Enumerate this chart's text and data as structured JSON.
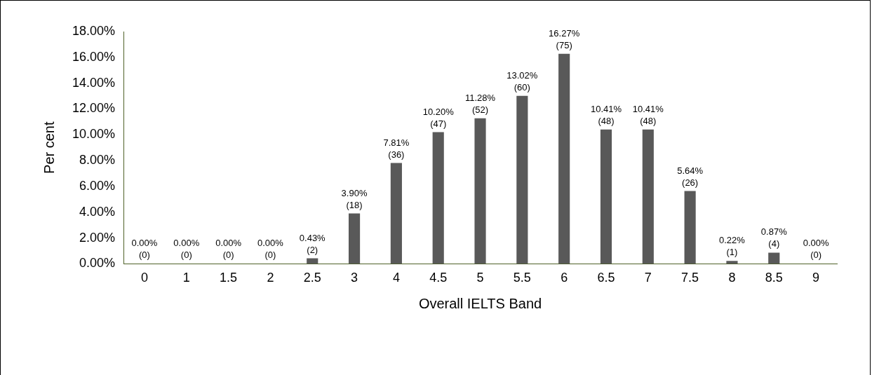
{
  "chart_data": {
    "type": "bar",
    "xlabel": "Overall IELTS Band",
    "ylabel": "Per cent",
    "categories": [
      "0",
      "1",
      "1.5",
      "2",
      "2.5",
      "3",
      "4",
      "4.5",
      "5",
      "5.5",
      "6",
      "6.5",
      "7",
      "7.5",
      "8",
      "8.5",
      "9"
    ],
    "values": [
      0,
      0,
      0,
      0,
      0.43,
      3.9,
      7.81,
      10.2,
      11.28,
      13.02,
      16.27,
      10.41,
      10.41,
      5.64,
      0.22,
      0.87,
      0
    ],
    "value_labels": [
      "0.00%\n(0)",
      "0.00%\n(0)",
      "0.00%\n(0)",
      "0.00%\n(0)",
      "0.43%\n(2)",
      "3.90%\n(18)",
      "7.81%\n(36)",
      "10.20%\n(47)",
      "11.28%\n(52)",
      "13.02%\n(60)",
      "16.27%\n(75)",
      "10.41%\n(48)",
      "10.41%\n(48)",
      "5.64%\n(26)",
      "0.22%\n(1)",
      "0.87%\n(4)",
      "0.00%\n(0)"
    ],
    "color": "#595959",
    "ylim": [
      0,
      18
    ],
    "yticks": [
      {
        "value": 0,
        "label": "0.00%"
      },
      {
        "value": 2,
        "label": "2.00%"
      },
      {
        "value": 4,
        "label": "4.00%"
      },
      {
        "value": 6,
        "label": "6.00%"
      },
      {
        "value": 8,
        "label": "8.00%"
      },
      {
        "value": 10,
        "label": "10.00%"
      },
      {
        "value": 12,
        "label": "12.00%"
      },
      {
        "value": 14,
        "label": "14.00%"
      },
      {
        "value": 16,
        "label": "16.00%"
      },
      {
        "value": 18,
        "label": "18.00%"
      }
    ],
    "grid": false,
    "legend": false
  }
}
